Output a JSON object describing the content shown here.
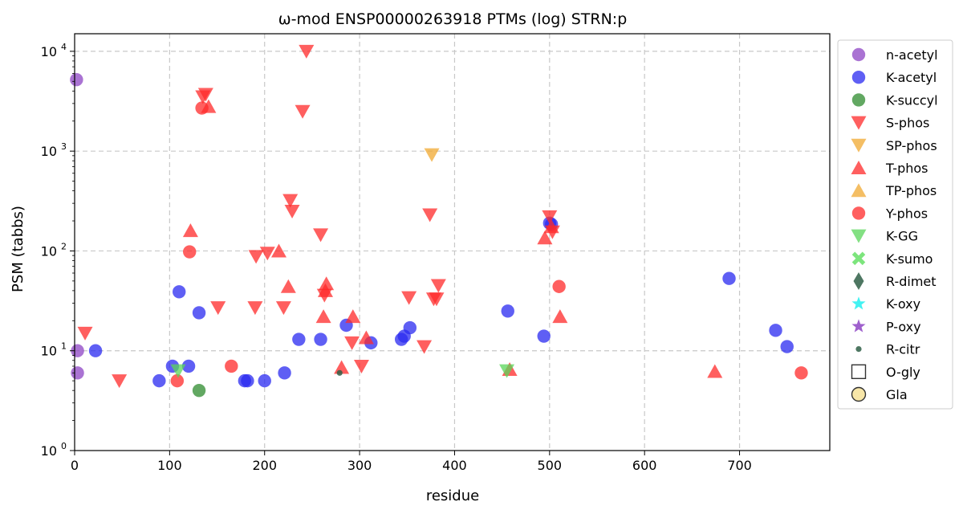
{
  "chart_data": {
    "type": "scatter",
    "title": "ω-mod ENSP00000263918 PTMs (log) STRN:p",
    "xlabel": "residue",
    "ylabel": "PSM (tabbs)",
    "xlim": [
      0,
      795
    ],
    "ylim": [
      1,
      15000
    ],
    "yscale": "log",
    "grid": true,
    "legend_position": "outside-right",
    "x_ticks": [
      {
        "value": 0,
        "label": "0"
      },
      {
        "value": 100,
        "label": "100"
      },
      {
        "value": 200,
        "label": "200"
      },
      {
        "value": 300,
        "label": "300"
      },
      {
        "value": 400,
        "label": "400"
      },
      {
        "value": 500,
        "label": "500"
      },
      {
        "value": 600,
        "label": "600"
      },
      {
        "value": 700,
        "label": "700"
      }
    ],
    "y_ticks": [
      {
        "value": 1,
        "base": "10",
        "exp": "0"
      },
      {
        "value": 10,
        "base": "10",
        "exp": "1"
      },
      {
        "value": 100,
        "base": "10",
        "exp": "2"
      },
      {
        "value": 1000,
        "base": "10",
        "exp": "3"
      },
      {
        "value": 10000,
        "base": "10",
        "exp": "4"
      }
    ],
    "series": [
      {
        "name": "n-acetyl",
        "color": "#8e44c4",
        "marker": "circle",
        "points": [
          [
            2,
            5200
          ],
          [
            3,
            10
          ],
          [
            3,
            6
          ]
        ]
      },
      {
        "name": "K-acetyl",
        "color": "#2929f0",
        "marker": "circle",
        "points": [
          [
            22,
            10
          ],
          [
            89,
            5
          ],
          [
            103,
            7
          ],
          [
            110,
            39
          ],
          [
            120,
            7
          ],
          [
            131,
            24
          ],
          [
            179,
            5
          ],
          [
            182,
            5
          ],
          [
            200,
            5
          ],
          [
            221,
            6
          ],
          [
            236,
            13
          ],
          [
            259,
            13
          ],
          [
            286,
            18
          ],
          [
            312,
            12
          ],
          [
            344,
            13
          ],
          [
            347,
            14
          ],
          [
            353,
            17
          ],
          [
            456,
            25
          ],
          [
            494,
            14
          ],
          [
            500,
            190
          ],
          [
            502,
            185
          ],
          [
            689,
            53
          ],
          [
            738,
            16
          ],
          [
            750,
            11
          ]
        ]
      },
      {
        "name": "K-succyl",
        "color": "#2e8b2e",
        "marker": "circle",
        "points": [
          [
            131,
            4
          ]
        ]
      },
      {
        "name": "S-phos",
        "color": "#ff2a2a",
        "marker": "triangle-down",
        "points": [
          [
            11,
            15
          ],
          [
            47,
            5
          ],
          [
            135,
            3500
          ],
          [
            138,
            3700
          ],
          [
            151,
            27
          ],
          [
            190,
            27
          ],
          [
            191,
            88
          ],
          [
            203,
            95
          ],
          [
            220,
            27
          ],
          [
            227,
            320
          ],
          [
            229,
            250
          ],
          [
            240,
            2500
          ],
          [
            244,
            10000
          ],
          [
            259,
            145
          ],
          [
            263,
            36
          ],
          [
            292,
            12
          ],
          [
            302,
            7
          ],
          [
            352,
            34
          ],
          [
            368,
            11
          ],
          [
            374,
            230
          ],
          [
            378,
            33
          ],
          [
            381,
            33
          ],
          [
            383,
            45
          ],
          [
            500,
            220
          ],
          [
            503,
            155
          ]
        ]
      },
      {
        "name": "SP-phos",
        "color": "#f0a830",
        "marker": "triangle-down",
        "points": [
          [
            376,
            920
          ]
        ]
      },
      {
        "name": "T-phos",
        "color": "#ff2a2a",
        "marker": "triangle-up",
        "points": [
          [
            141,
            2800
          ],
          [
            122,
            160
          ],
          [
            215,
            100
          ],
          [
            225,
            44
          ],
          [
            262,
            22
          ],
          [
            264,
            40
          ],
          [
            265,
            47
          ],
          [
            281,
            6.8
          ],
          [
            293,
            22
          ],
          [
            307,
            13.5
          ],
          [
            495,
            135
          ],
          [
            502,
            175
          ],
          [
            511,
            22
          ],
          [
            458,
            6.5
          ],
          [
            674,
            6.2
          ]
        ]
      },
      {
        "name": "TP-phos",
        "color": "#f0a830",
        "marker": "triangle-up",
        "points": []
      },
      {
        "name": "Y-phos",
        "color": "#ff2a2a",
        "marker": "circle",
        "points": [
          [
            134,
            2700
          ],
          [
            121,
            98
          ],
          [
            108,
            5
          ],
          [
            165,
            7
          ],
          [
            510,
            44
          ],
          [
            765,
            6
          ]
        ]
      },
      {
        "name": "K-GG",
        "color": "#5ad65a",
        "marker": "triangle-down",
        "points": [
          [
            109,
            6.3
          ],
          [
            455,
            6.3
          ]
        ]
      },
      {
        "name": "K-sumo",
        "color": "#66e066",
        "marker": "x",
        "points": []
      },
      {
        "name": "R-dimet",
        "color": "#2f5f46",
        "marker": "diamond",
        "points": []
      },
      {
        "name": "K-oxy",
        "color": "#22f0f0",
        "marker": "star",
        "points": []
      },
      {
        "name": "P-oxy",
        "color": "#8e44c4",
        "marker": "star",
        "points": []
      },
      {
        "name": "R-citr",
        "color": "#2f5f46",
        "marker": "small-circle",
        "points": [
          [
            279,
            6
          ]
        ]
      },
      {
        "name": "O-gly",
        "color": "#333333",
        "marker": "square-open",
        "points": []
      },
      {
        "name": "Gla",
        "color": "#333333",
        "marker": "circle-gold",
        "points": []
      }
    ]
  }
}
